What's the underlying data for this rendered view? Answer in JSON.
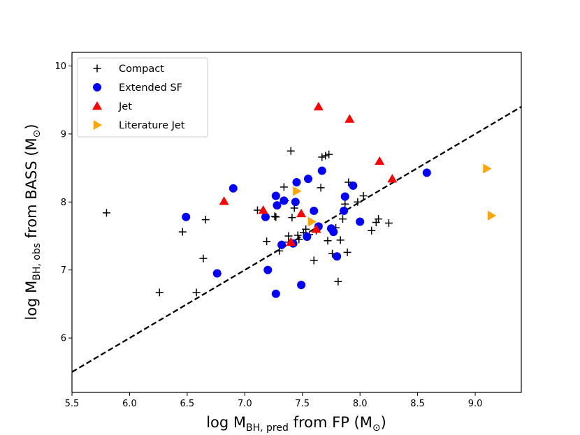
{
  "chart_data": {
    "type": "scatter",
    "title": "",
    "xlabel": {
      "base": "log M",
      "sub": "BH, pred",
      "rest": " from FP (M",
      "sun": "⊙",
      "close": ")"
    },
    "ylabel": {
      "base": "log M",
      "sub": "BH, obs",
      "rest": " from BASS (M",
      "sun": "⊙",
      "close": ")"
    },
    "xlim": [
      5.5,
      9.4
    ],
    "ylim": [
      5.2,
      10.2
    ],
    "xticks": [
      5.5,
      6.0,
      6.5,
      7.0,
      7.5,
      8.0,
      8.5,
      9.0
    ],
    "xtick_labels": [
      "5.5",
      "6.0",
      "6.5",
      "7.0",
      "7.5",
      "8.0",
      "8.5",
      "9.0"
    ],
    "yticks": [
      6,
      7,
      8,
      9,
      10
    ],
    "ytick_labels": [
      "6",
      "7",
      "8",
      "9",
      "10"
    ],
    "grid": false,
    "legend_position": "top-left",
    "reference_line": {
      "name": "one-to-one",
      "style": "dashed",
      "color": "#000000",
      "x": [
        5.5,
        9.4
      ],
      "y": [
        5.5,
        9.4
      ]
    },
    "series": [
      {
        "name": "Compact",
        "marker": "plus",
        "color": "#000000",
        "points": [
          [
            5.8,
            7.84
          ],
          [
            6.26,
            6.67
          ],
          [
            6.46,
            7.56
          ],
          [
            6.58,
            6.67
          ],
          [
            6.64,
            7.17
          ],
          [
            6.66,
            7.74
          ],
          [
            7.11,
            7.88
          ],
          [
            7.19,
            7.42
          ],
          [
            7.26,
            7.79
          ],
          [
            7.27,
            7.78
          ],
          [
            7.3,
            7.28
          ],
          [
            7.34,
            8.22
          ],
          [
            7.35,
            8.02
          ],
          [
            7.38,
            7.5
          ],
          [
            7.4,
            8.75
          ],
          [
            7.41,
            7.77
          ],
          [
            7.43,
            7.91
          ],
          [
            7.47,
            7.45
          ],
          [
            7.51,
            7.55
          ],
          [
            7.53,
            7.6
          ],
          [
            7.56,
            7.52
          ],
          [
            7.6,
            7.14
          ],
          [
            7.62,
            7.58
          ],
          [
            7.66,
            8.21
          ],
          [
            7.67,
            8.66
          ],
          [
            7.7,
            8.68
          ],
          [
            7.72,
            7.43
          ],
          [
            7.73,
            8.7
          ],
          [
            7.76,
            7.24
          ],
          [
            7.79,
            7.62
          ],
          [
            7.81,
            6.83
          ],
          [
            7.83,
            7.44
          ],
          [
            7.85,
            7.75
          ],
          [
            7.87,
            7.97
          ],
          [
            7.89,
            7.26
          ],
          [
            7.9,
            8.29
          ],
          [
            7.98,
            8.0
          ],
          [
            8.03,
            8.09
          ],
          [
            8.1,
            7.58
          ],
          [
            8.14,
            7.7
          ],
          [
            8.16,
            7.75
          ],
          [
            8.25,
            7.69
          ],
          [
            7.32,
            7.36
          ],
          [
            7.38,
            7.41
          ],
          [
            7.46,
            7.51
          ]
        ]
      },
      {
        "name": "Extended SF",
        "marker": "circle",
        "color": "#0000ff",
        "points": [
          [
            6.49,
            7.78
          ],
          [
            6.76,
            6.95
          ],
          [
            6.9,
            8.2
          ],
          [
            7.18,
            7.78
          ],
          [
            7.2,
            7.0
          ],
          [
            7.27,
            8.09
          ],
          [
            7.28,
            7.95
          ],
          [
            7.27,
            6.65
          ],
          [
            7.32,
            7.37
          ],
          [
            7.34,
            8.02
          ],
          [
            7.42,
            7.39
          ],
          [
            7.44,
            8.0
          ],
          [
            7.45,
            8.29
          ],
          [
            7.49,
            6.78
          ],
          [
            7.54,
            7.49
          ],
          [
            7.55,
            8.34
          ],
          [
            7.6,
            7.87
          ],
          [
            7.64,
            7.64
          ],
          [
            7.67,
            8.46
          ],
          [
            7.75,
            7.61
          ],
          [
            7.77,
            7.56
          ],
          [
            7.8,
            7.2
          ],
          [
            7.86,
            7.87
          ],
          [
            7.87,
            8.08
          ],
          [
            7.94,
            8.24
          ],
          [
            8.0,
            7.71
          ],
          [
            8.58,
            8.43
          ]
        ]
      },
      {
        "name": "Jet",
        "marker": "triangle-up",
        "color": "#ff0000",
        "points": [
          [
            6.82,
            8.01
          ],
          [
            7.16,
            7.88
          ],
          [
            7.4,
            7.41
          ],
          [
            7.49,
            7.83
          ],
          [
            7.62,
            7.6
          ],
          [
            7.64,
            9.4
          ],
          [
            7.91,
            9.22
          ],
          [
            8.17,
            8.6
          ],
          [
            8.28,
            8.34
          ]
        ]
      },
      {
        "name": "Literature Jet",
        "marker": "triangle-right",
        "color": "#ffa500",
        "points": [
          [
            7.45,
            8.16
          ],
          [
            7.58,
            7.71
          ],
          [
            9.1,
            8.49
          ],
          [
            9.14,
            7.8
          ]
        ]
      }
    ]
  }
}
